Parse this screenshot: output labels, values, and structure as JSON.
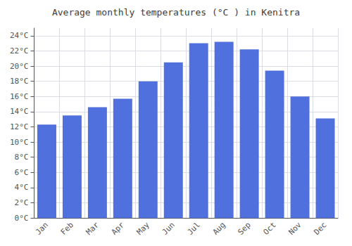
{
  "chart_data": {
    "type": "bar",
    "title": "Average monthly temperatures (°C ) in Kenitra",
    "categories": [
      "Jan",
      "Feb",
      "Mar",
      "Apr",
      "May",
      "Jun",
      "Jul",
      "Aug",
      "Sep",
      "Oct",
      "Nov",
      "Dec"
    ],
    "values": [
      12.3,
      13.5,
      14.6,
      15.7,
      18.0,
      20.5,
      23.0,
      23.2,
      22.2,
      19.4,
      16.0,
      13.1
    ],
    "ylim": [
      0,
      25
    ],
    "yticks": [
      {
        "value": 0,
        "label": "0°C"
      },
      {
        "value": 2,
        "label": "2°C"
      },
      {
        "value": 4,
        "label": "4°C"
      },
      {
        "value": 6,
        "label": "6°C"
      },
      {
        "value": 8,
        "label": "8°C"
      },
      {
        "value": 10,
        "label": "10°C"
      },
      {
        "value": 12,
        "label": "12°C"
      },
      {
        "value": 14,
        "label": "14°C"
      },
      {
        "value": 16,
        "label": "16°C"
      },
      {
        "value": 18,
        "label": "18°C"
      },
      {
        "value": 20,
        "label": "20°C"
      },
      {
        "value": 22,
        "label": "22°C"
      },
      {
        "value": 24,
        "label": "24°C"
      }
    ],
    "grid": true
  }
}
